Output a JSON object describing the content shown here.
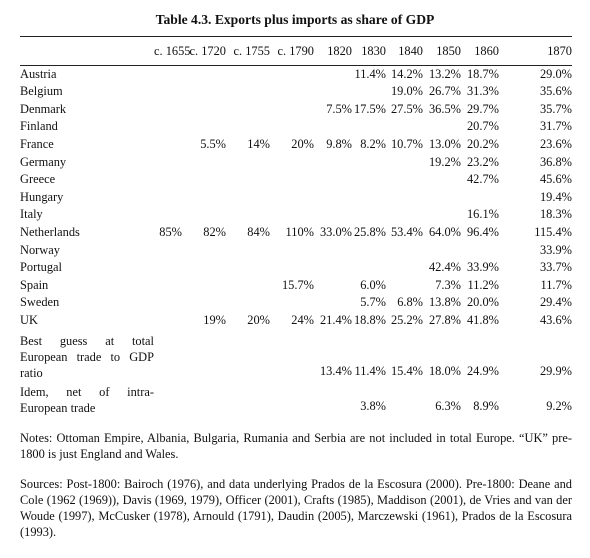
{
  "title": "Table 4.3. Exports plus imports as share of GDP",
  "columns": [
    "",
    "c. 1655",
    "c. 1720",
    "c. 1755",
    "c. 1790",
    "1820",
    "1830",
    "1840",
    "1850",
    "1860",
    "1870"
  ],
  "rows": [
    {
      "country": "Austria",
      "values": [
        "",
        "",
        "",
        "",
        "",
        "11.4%",
        "14.2%",
        "13.2%",
        "18.7%",
        "29.0%"
      ]
    },
    {
      "country": "Belgium",
      "values": [
        "",
        "",
        "",
        "",
        "",
        "",
        "19.0%",
        "26.7%",
        "31.3%",
        "35.6%"
      ]
    },
    {
      "country": "Denmark",
      "values": [
        "",
        "",
        "",
        "",
        "7.5%",
        "17.5%",
        "27.5%",
        "36.5%",
        "29.7%",
        "35.7%"
      ]
    },
    {
      "country": "Finland",
      "values": [
        "",
        "",
        "",
        "",
        "",
        "",
        "",
        "",
        "20.7%",
        "31.7%"
      ]
    },
    {
      "country": "France",
      "values": [
        "",
        "5.5%",
        "14%",
        "20%",
        "9.8%",
        "8.2%",
        "10.7%",
        "13.0%",
        "20.2%",
        "23.6%"
      ]
    },
    {
      "country": "Germany",
      "values": [
        "",
        "",
        "",
        "",
        "",
        "",
        "",
        "19.2%",
        "23.2%",
        "36.8%"
      ]
    },
    {
      "country": "Greece",
      "values": [
        "",
        "",
        "",
        "",
        "",
        "",
        "",
        "",
        "42.7%",
        "45.6%"
      ]
    },
    {
      "country": "Hungary",
      "values": [
        "",
        "",
        "",
        "",
        "",
        "",
        "",
        "",
        "",
        "19.4%"
      ]
    },
    {
      "country": "Italy",
      "values": [
        "",
        "",
        "",
        "",
        "",
        "",
        "",
        "",
        "16.1%",
        "18.3%"
      ]
    },
    {
      "country": "Netherlands",
      "values": [
        "85%",
        "82%",
        "84%",
        "110%",
        "33.0%",
        "25.8%",
        "53.4%",
        "64.0%",
        "96.4%",
        "115.4%"
      ]
    },
    {
      "country": "Norway",
      "values": [
        "",
        "",
        "",
        "",
        "",
        "",
        "",
        "",
        "",
        "33.9%"
      ]
    },
    {
      "country": "Portugal",
      "values": [
        "",
        "",
        "",
        "",
        "",
        "",
        "",
        "42.4%",
        "33.9%",
        "33.7%"
      ]
    },
    {
      "country": "Spain",
      "values": [
        "",
        "",
        "",
        "15.7%",
        "",
        "6.0%",
        "",
        "7.3%",
        "11.2%",
        "11.7%"
      ]
    },
    {
      "country": "Sweden",
      "values": [
        "",
        "",
        "",
        "",
        "",
        "5.7%",
        "6.8%",
        "13.8%",
        "20.0%",
        "29.4%"
      ]
    },
    {
      "country": "UK",
      "values": [
        "",
        "19%",
        "20%",
        "24%",
        "21.4%",
        "18.8%",
        "25.2%",
        "27.8%",
        "41.8%",
        "43.6%"
      ]
    },
    {
      "country": "Best guess at total European trade to GDP ratio",
      "values": [
        "",
        "",
        "",
        "",
        "13.4%",
        "11.4%",
        "15.4%",
        "18.0%",
        "24.9%",
        "29.9%"
      ]
    },
    {
      "country": "Idem, net of intra-European trade",
      "values": [
        "",
        "",
        "",
        "",
        "",
        "3.8%",
        "",
        "6.3%",
        "8.9%",
        "9.2%"
      ]
    }
  ],
  "notes": [
    "Notes: Ottoman Empire, Albania, Bulgaria, Rumania and Serbia are not included in total Europe. “UK” pre-1800 is just England and Wales.",
    "Sources: Post-1800: Bairoch (1976), and data underlying Prados de la Escosura (2000). Pre-1800: Deane and Cole (1962 (1969)), Davis (1969, 1979), Officer (2001), Crafts (1985), Maddison (2001), de Vries and van der Woude (1997), McCusker (1978), Arnould (1791), Daudin (2005), Marczewski (1961), Prados de la Escosura (1993)."
  ]
}
